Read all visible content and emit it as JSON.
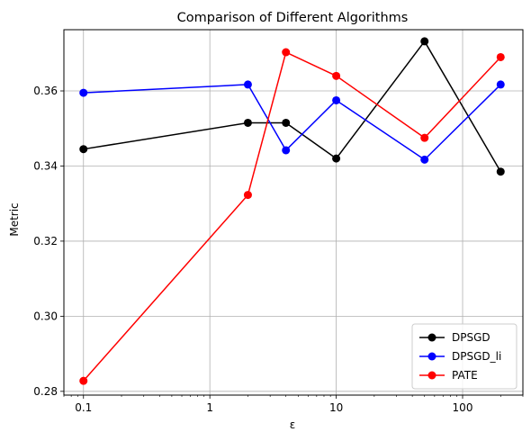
{
  "chart_data": {
    "type": "line",
    "title": "Comparison of Different Algorithms",
    "xlabel": "ε",
    "ylabel": "Metric",
    "xscale": "log",
    "xlim": [
      0.07,
      300
    ],
    "ylim": [
      0.279,
      0.3763
    ],
    "grid": true,
    "legend_position": "lower-right",
    "x_ticks": [
      {
        "value": 0.1,
        "label": "0.1"
      },
      {
        "value": 1,
        "label": "1"
      },
      {
        "value": 10,
        "label": "10"
      },
      {
        "value": 100,
        "label": "100"
      }
    ],
    "y_ticks": [
      {
        "value": 0.28,
        "label": "0.28"
      },
      {
        "value": 0.3,
        "label": "0.30"
      },
      {
        "value": 0.32,
        "label": "0.32"
      },
      {
        "value": 0.34,
        "label": "0.34"
      },
      {
        "value": 0.36,
        "label": "0.36"
      }
    ],
    "x": [
      0.1,
      2,
      4,
      10,
      50,
      200
    ],
    "series": [
      {
        "name": "DPSGD",
        "color": "#000000",
        "values": [
          0.3445,
          0.3515,
          0.3515,
          0.342,
          0.3732,
          0.3385
        ]
      },
      {
        "name": "DPSGD_li",
        "color": "#0000ff",
        "values": [
          0.3595,
          0.3617,
          0.3442,
          0.3575,
          0.3417,
          0.3617
        ]
      },
      {
        "name": "PATE",
        "color": "#ff0000",
        "values": [
          0.2828,
          0.3323,
          0.3703,
          0.364,
          0.3475,
          0.369
        ]
      }
    ]
  }
}
